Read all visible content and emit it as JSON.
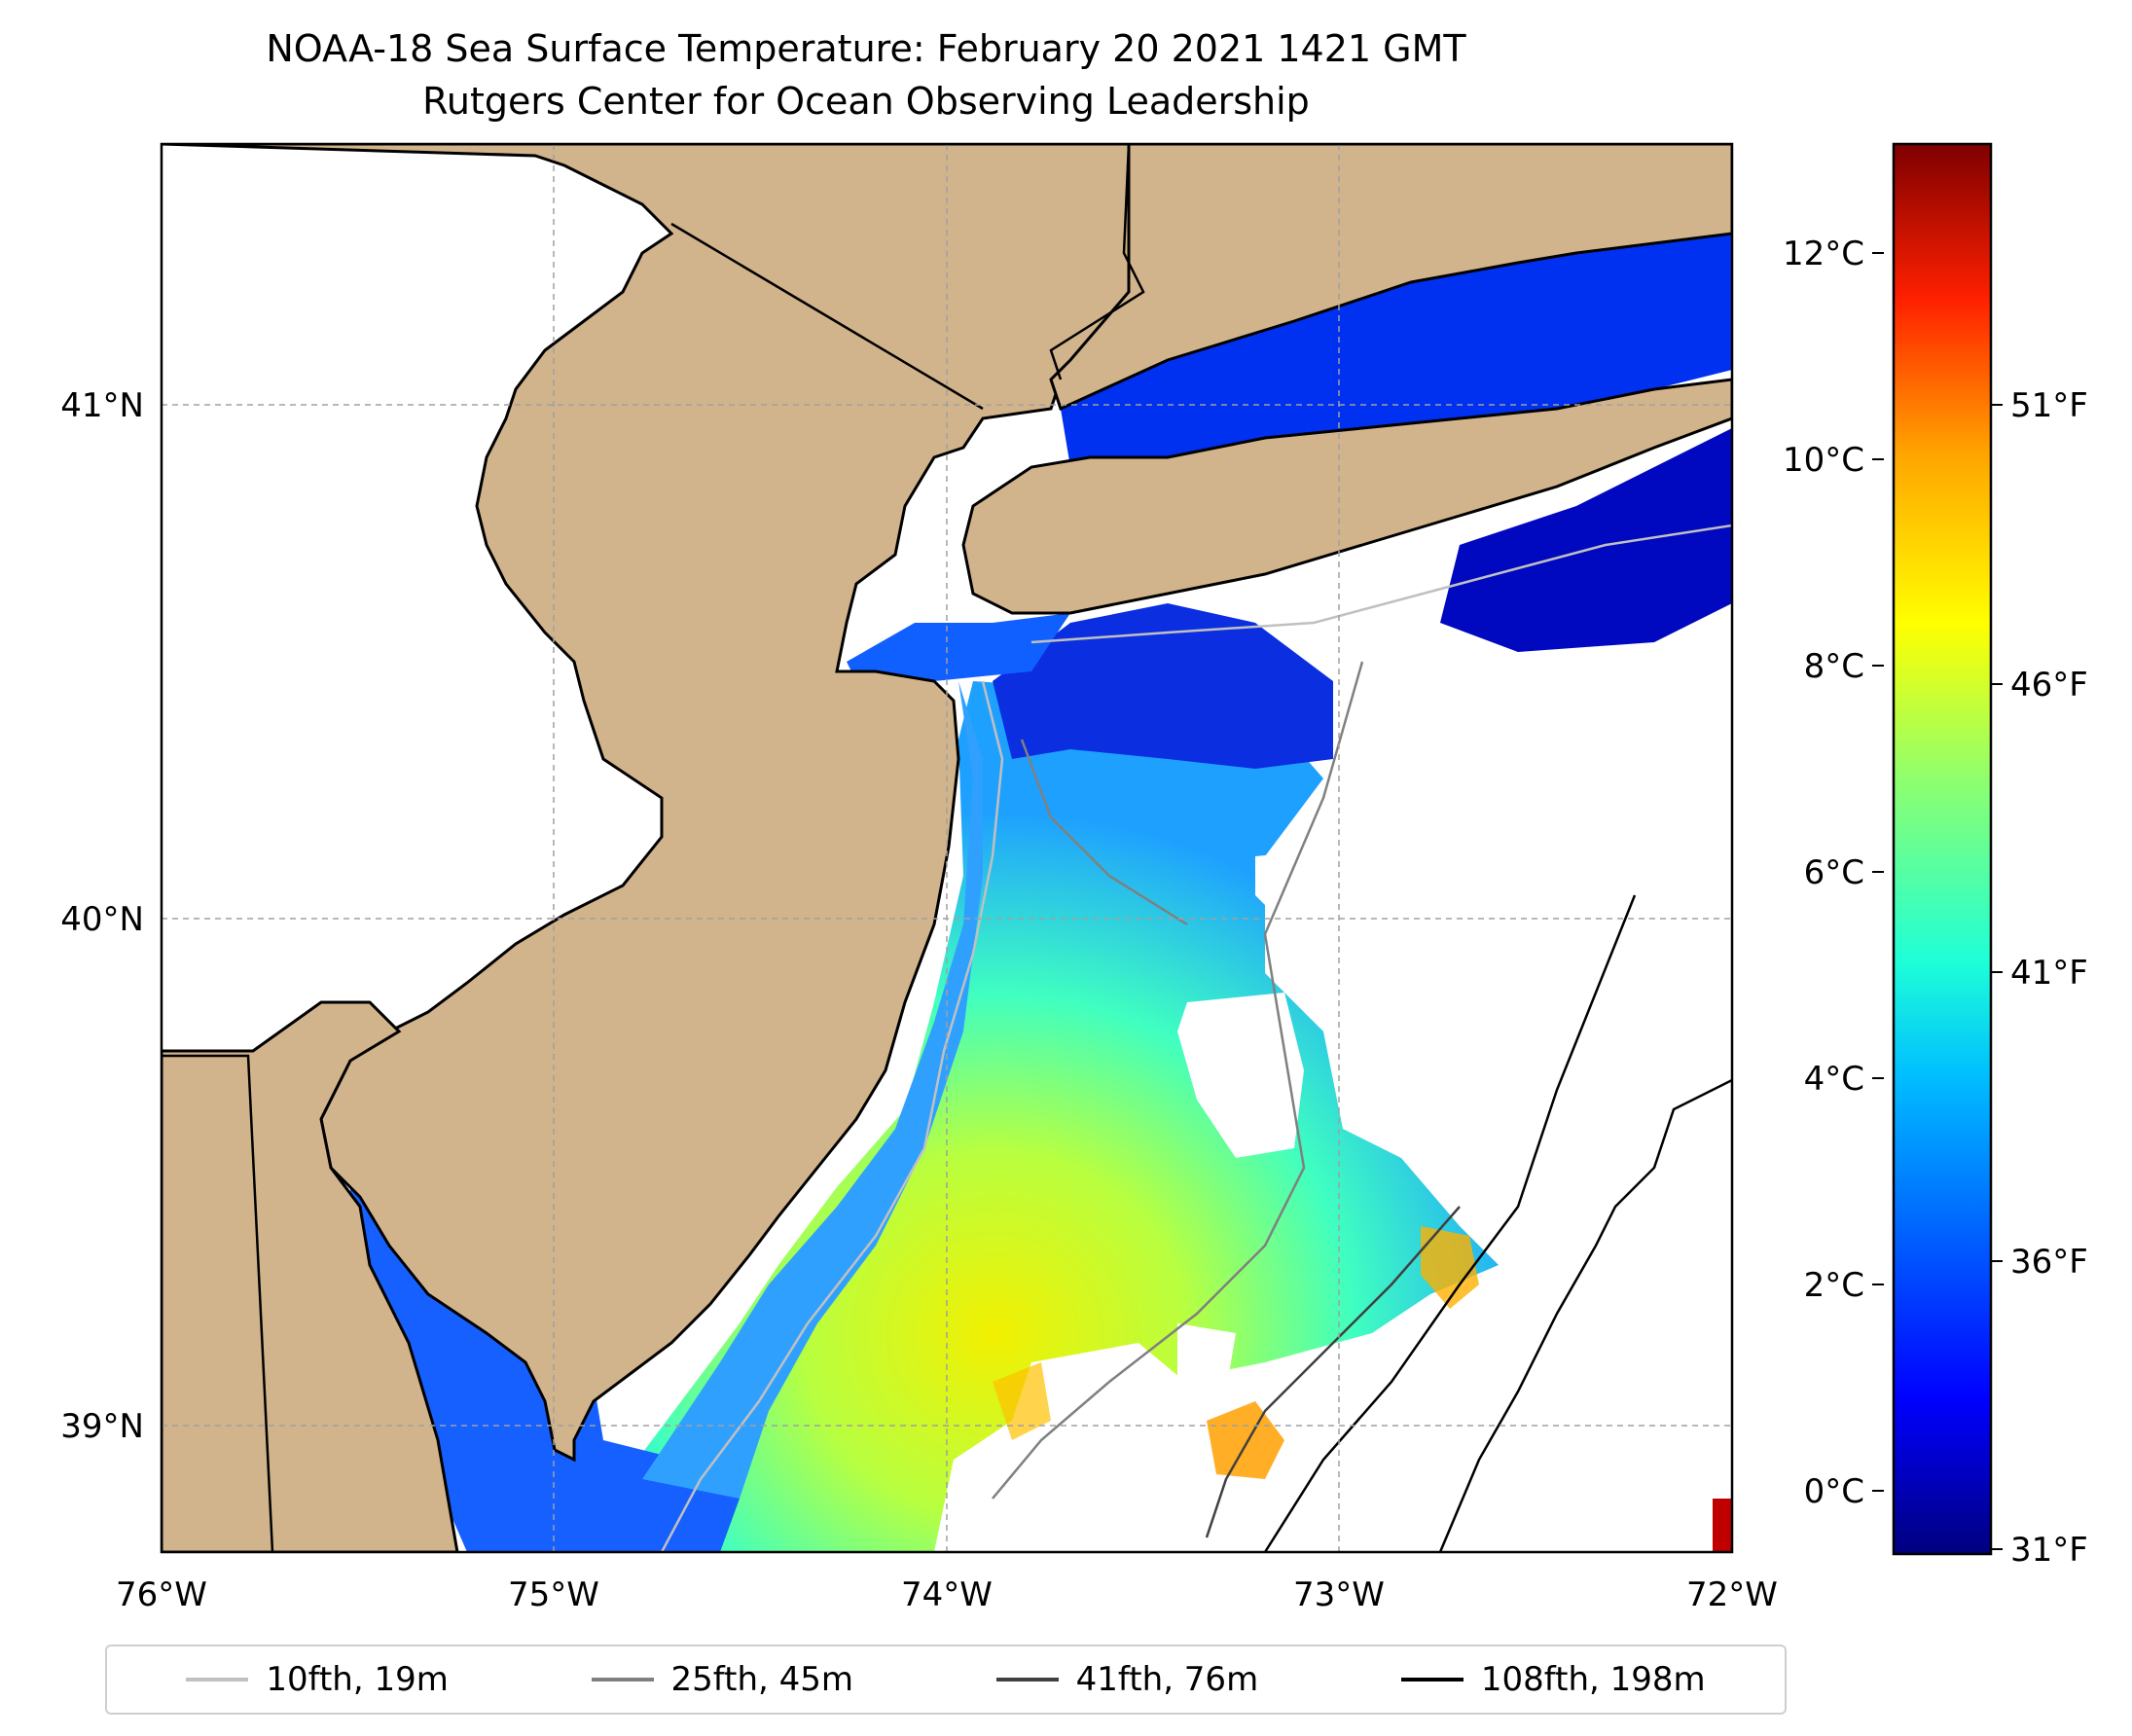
{
  "title": "NOAA-18 Sea Surface Temperature: February 20 2021 1421 GMT",
  "subtitle": "Rutgers Center for Ocean Observing Leadership",
  "map": {
    "lon_range": [
      -76,
      -72
    ],
    "lat_range": [
      38.75,
      41.5
    ],
    "lon_ticks": [
      "76°W",
      "75°W",
      "74°W",
      "73°W",
      "72°W"
    ],
    "lat_ticks": [
      "39°N",
      "40°N",
      "41°N"
    ],
    "grid": true,
    "land_color": "#d2b48c",
    "no_data_color": "#ffffff"
  },
  "colorbar": {
    "colormap": "jet",
    "celsius_ticks": [
      "0°C",
      "2°C",
      "4°C",
      "6°C",
      "8°C",
      "10°C",
      "12°C"
    ],
    "fahrenheit_ticks": [
      "31°F",
      "36°F",
      "41°F",
      "46°F",
      "51°F"
    ]
  },
  "legend": [
    {
      "label": "10fth, 19m",
      "color": "#c0c0c0"
    },
    {
      "label": "25fth, 45m",
      "color": "#808080"
    },
    {
      "label": "41fth, 76m",
      "color": "#404040"
    },
    {
      "label": "108fth, 198m",
      "color": "#000000"
    }
  ]
}
